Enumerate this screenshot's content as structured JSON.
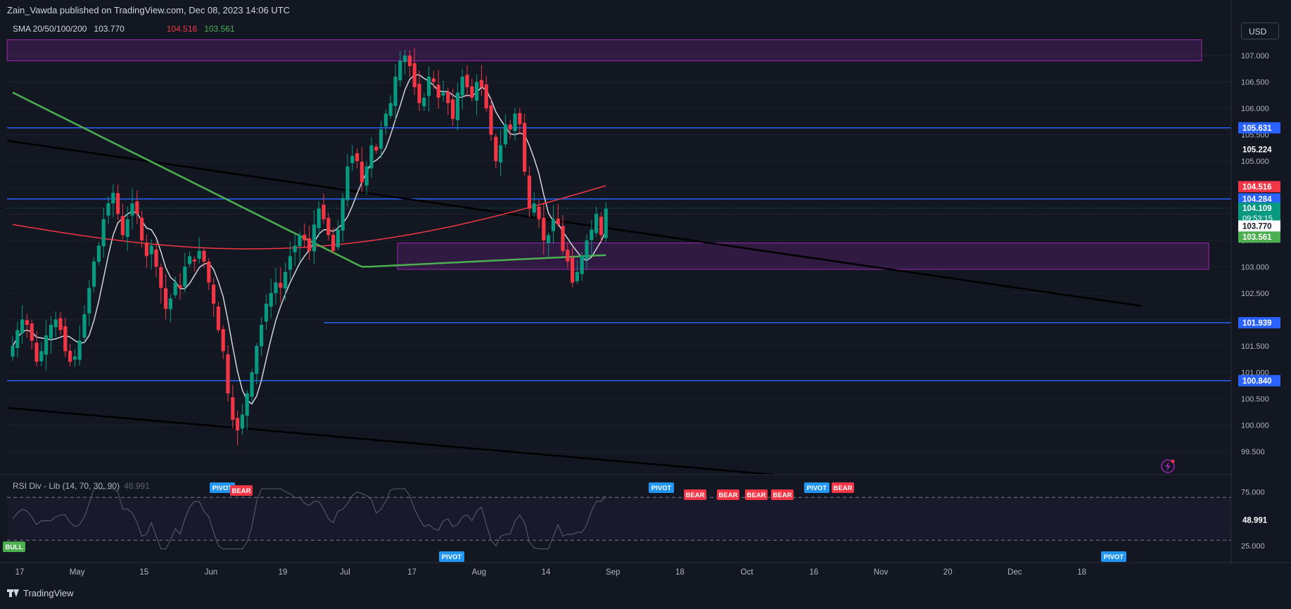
{
  "header": {
    "published": "Zain_Vawda published on TradingView.com, Dec 08, 2023 14:06 UTC",
    "currency": "USD",
    "brand": "TradingView"
  },
  "sma_legend": {
    "label": "SMA 20/50/100/200",
    "v1": "103.770",
    "v2": "104.516",
    "v3": "103.561",
    "c1": "#d1d4dc",
    "c2": "#f23645",
    "c3": "#4caf50"
  },
  "rsi_legend": {
    "label": "RSI Div - Lib (14, 70, 30, 90)",
    "value": "48.991"
  },
  "chart_data": [
    {
      "type": "candlestick",
      "ylim": [
        99.0,
        107.5
      ],
      "y_ticks": [
        "107.000",
        "106.500",
        "106.000",
        "105.500",
        "105.000",
        "104.500",
        "104.000",
        "103.500",
        "103.000",
        "102.500",
        "102.000",
        "101.500",
        "101.000",
        "100.500",
        "100.000",
        "99.500"
      ],
      "y_tick_values": [
        107.0,
        106.5,
        106.0,
        105.5,
        105.0,
        104.5,
        104.0,
        103.5,
        103.0,
        102.5,
        102.0,
        101.5,
        101.0,
        100.5,
        100.0,
        99.5
      ],
      "x_labels": [
        "17",
        "May",
        "15",
        "Jun",
        "19",
        "Jul",
        "17",
        "Aug",
        "14",
        "Sep",
        "18",
        "Oct",
        "16",
        "Nov",
        "20",
        "Dec",
        "18"
      ],
      "x_label_index": [
        0,
        12,
        26,
        40,
        55,
        68,
        82,
        96,
        110,
        124,
        138,
        152,
        166,
        180,
        194,
        208,
        222
      ],
      "close_path": [
        101.5,
        101.8,
        102.0,
        101.9,
        101.6,
        101.2,
        101.4,
        101.7,
        101.9,
        102.0,
        101.8,
        101.4,
        101.2,
        101.3,
        101.6,
        102.1,
        102.6,
        103.1,
        103.4,
        103.9,
        104.2,
        104.4,
        104.0,
        103.6,
        103.9,
        104.2,
        104.0,
        103.5,
        103.2,
        103.4,
        103.0,
        102.6,
        102.2,
        102.4,
        102.7,
        102.6,
        103.0,
        103.2,
        103.1,
        103.3,
        103.1,
        102.7,
        102.3,
        101.8,
        101.4,
        100.6,
        100.1,
        99.9,
        100.2,
        100.6,
        101.0,
        101.5,
        101.9,
        102.3,
        102.5,
        102.7,
        102.6,
        102.9,
        103.2,
        103.4,
        103.6,
        103.5,
        103.3,
        103.8,
        104.1,
        103.9,
        103.6,
        103.3,
        103.7,
        104.3,
        104.9,
        105.1,
        105.0,
        104.6,
        104.9,
        105.3,
        105.2,
        105.6,
        105.9,
        106.1,
        106.6,
        106.9,
        107.0,
        106.8,
        106.4,
        106.1,
        106.2,
        106.6,
        106.5,
        106.2,
        106.3,
        106.1,
        105.8,
        106.3,
        106.6,
        106.4,
        106.2,
        106.5,
        106.4,
        106.0,
        105.5,
        105.0,
        105.3,
        105.7,
        105.6,
        105.9,
        105.7,
        104.8,
        104.1,
        104.2,
        103.9,
        103.5,
        103.6,
        103.9,
        103.8,
        103.3,
        103.1,
        102.7,
        102.9,
        103.2,
        103.5,
        103.7,
        104.0,
        103.6,
        104.1
      ],
      "series": [
        {
          "name": "",
          "color": "#d1d4dc"
        },
        {
          "name": "",
          "color": "#f23645"
        },
        {
          "name": "",
          "color": "#4caf50"
        }
      ],
      "levels": [
        105.631,
        104.284,
        101.939,
        100.841
      ],
      "price_labels": [
        {
          "text": "105.631",
          "value": 105.631,
          "bg": "#2962ff",
          "fg": "#ffffff"
        },
        {
          "text": "105.224",
          "value": 105.224,
          "bg": "#131722",
          "fg": "#ffffff"
        },
        {
          "text": "104.516",
          "value": 104.516,
          "bg": "#f23645",
          "fg": "#ffffff"
        },
        {
          "text": "104.284",
          "value": 104.284,
          "bg": "#2962ff",
          "fg": "#ffffff"
        },
        {
          "text": "104.109",
          "value": 104.109,
          "bg": "#089981",
          "fg": "#ffffff",
          "sub": "09:53:15"
        },
        {
          "text": "103.770",
          "value": 103.77,
          "bg": "#ffffff",
          "fg": "#131722"
        },
        {
          "text": "103.561",
          "value": 103.561,
          "bg": "#4caf50",
          "fg": "#ffffff"
        },
        {
          "text": "101.939",
          "value": 101.939,
          "bg": "#2962ff",
          "fg": "#ffffff"
        },
        {
          "text": "100.841",
          "value": 100.841,
          "bg": "#2962ff",
          "fg": "#ffffff"
        },
        {
          "text": "100.840",
          "value": 100.84,
          "bg": "#2962ff",
          "fg": "#ffffff"
        }
      ],
      "zones": [
        {
          "from": 106.9,
          "to": 107.3
        },
        {
          "from": 102.95,
          "to": 103.45
        }
      ]
    },
    {
      "type": "line",
      "ylim": [
        0,
        100
      ],
      "y_ticks": [
        "75.000",
        "25.000"
      ],
      "y_tick_values": [
        75,
        25
      ],
      "bands": [
        70,
        30
      ],
      "current": "48.991",
      "signals": [
        {
          "text": "BULL",
          "color": "#4caf50",
          "pos": "below"
        },
        {
          "text": "PIVOT",
          "color": "#2196f3",
          "pos": "above"
        },
        {
          "text": "BEAR",
          "color": "#f23645",
          "pos": "above"
        },
        {
          "text": "PIVOT",
          "color": "#2196f3",
          "pos": "below"
        },
        {
          "text": "PIVOT",
          "color": "#2196f3",
          "pos": "above"
        },
        {
          "text": "BEAR",
          "color": "#f23645",
          "pos": "above"
        },
        {
          "text": "BEAR",
          "color": "#f23645",
          "pos": "above"
        },
        {
          "text": "BEAR",
          "color": "#f23645",
          "pos": "above"
        },
        {
          "text": "BEAR",
          "color": "#f23645",
          "pos": "above"
        },
        {
          "text": "PIVOT",
          "color": "#2196f3",
          "pos": "above"
        },
        {
          "text": "BEAR",
          "color": "#f23645",
          "pos": "above"
        },
        {
          "text": "PIVOT",
          "color": "#2196f3",
          "pos": "below"
        }
      ]
    }
  ]
}
